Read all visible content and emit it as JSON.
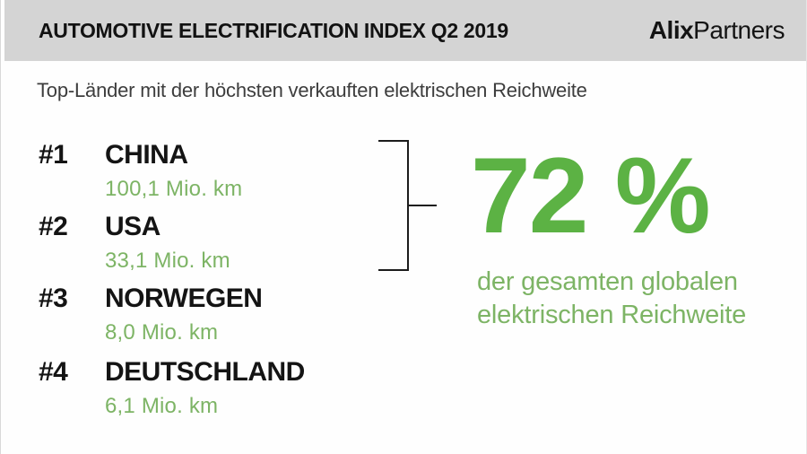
{
  "header": {
    "title": "AUTOMOTIVE ELECTRIFICATION INDEX Q2 2019",
    "logo_bold": "Alix",
    "logo_regular": "Partners"
  },
  "subtitle": "Top-Länder mit der höchsten verkauften elektrischen Reichweite",
  "ranking": [
    {
      "rank": "#1",
      "country": "CHINA",
      "value": "100,1 Mio. km"
    },
    {
      "rank": "#2",
      "country": "USA",
      "value": "33,1 Mio. km"
    },
    {
      "rank": "#3",
      "country": "NORWEGEN",
      "value": "8,0 Mio. km"
    },
    {
      "rank": "#4",
      "country": "DEUTSCHLAND",
      "value": "6,1 Mio. km"
    }
  ],
  "highlight": {
    "percentage": "72 %",
    "caption_line1": "der gesamten globalen",
    "caption_line2": "elektrischen Reichweite"
  },
  "colors": {
    "header_gray": "#d4d4d4",
    "accent_green": "#5cb244",
    "light_green": "#7db465",
    "text_black": "#141414"
  },
  "chart_data": {
    "type": "table",
    "title": "AUTOMOTIVE ELECTRIFICATION INDEX Q2 2019",
    "subtitle": "Top-Länder mit der höchsten verkauften elektrischen Reichweite",
    "categories": [
      "CHINA",
      "USA",
      "NORWEGEN",
      "DEUTSCHLAND"
    ],
    "values": [
      100.1,
      33.1,
      8.0,
      6.1
    ],
    "unit": "Mio. km",
    "annotation": "72 % der gesamten globalen elektrischen Reichweite (CHINA + USA)"
  }
}
